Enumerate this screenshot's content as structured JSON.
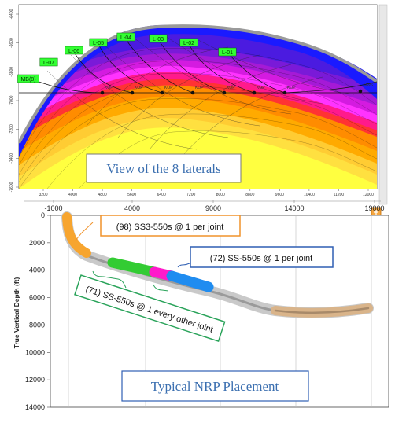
{
  "top_panel": {
    "caption": "View of the 8 laterals",
    "lateral_labels": [
      "MB(8)",
      "L-07",
      "L-06",
      "L-05",
      "L-04",
      "L-03",
      "L-02",
      "L-01"
    ],
    "x_tick_labels": [
      "3200",
      "4000",
      "4800",
      "5600",
      "6400",
      "7200",
      "8000",
      "8800",
      "9600",
      "10400",
      "11200",
      "12000"
    ],
    "y_tick_labels": [
      "-6400",
      "-6600",
      "-6800",
      "-7000",
      "-7200",
      "-7400",
      "-7600"
    ],
    "kop_labels": [
      "KOP",
      "KOP",
      "KOP",
      "KOP",
      "KOP",
      "KOP",
      "KOP"
    ],
    "mws_label": "MWS",
    "outer_x_tick_labels": [
      "-1000",
      "4000",
      "9000",
      "14000",
      "19000"
    ],
    "colors": {
      "layers": [
        "#1a1aff",
        "#4b1be0",
        "#7a1ad8",
        "#a51ad6",
        "#d41be0",
        "#ff33ff",
        "#ff1a8c",
        "#ff3333",
        "#ff8c00",
        "#ffaa00",
        "#ffcc33",
        "#ffe040",
        "#ffff40"
      ],
      "cap_gray": "#9a9a9a",
      "label_fill": "#33ff33"
    }
  },
  "bottom_panel": {
    "caption": "Typical NRP Placement",
    "y_axis_label": "True Vertical Depth (ft)",
    "y_tick_labels": [
      "0",
      "2000",
      "4000",
      "6000",
      "8000",
      "10000",
      "12000",
      "14000"
    ],
    "callouts": [
      {
        "text": "(98) SS3-550s @ 1 per joint",
        "border_color": "#f0922a"
      },
      {
        "text": "(72) SS-550s @ 1 per joint",
        "border_color": "#2f5fb3"
      },
      {
        "text": "(71) SS-550s @ 1 every other joint",
        "border_color": "#2aa35a"
      }
    ],
    "colors": {
      "well_path": "#c9c9c9",
      "well_core": "#9a9a9a",
      "heel_segment": "#f7a52f",
      "toe_segment": "#d9b48a",
      "green": "#33cc33",
      "magenta": "#ff1acb",
      "blue": "#1f8cf0",
      "caption_box": "#2f5fb3"
    }
  }
}
